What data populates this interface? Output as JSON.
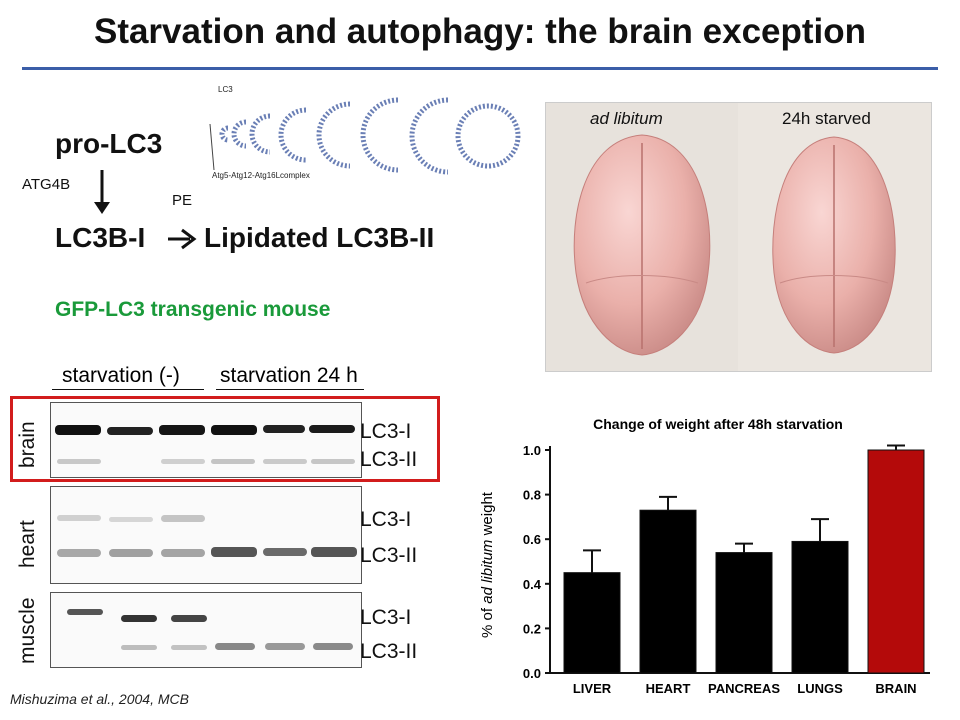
{
  "slide": {
    "title": "Starvation and autophagy: the brain exception",
    "citation": "Mishuzima et al., 2004, MCB"
  },
  "pathway": {
    "pro": "pro-LC3",
    "enzyme": "ATG4B",
    "pe": "PE",
    "lc3b1": "LC3B-I",
    "arrow": "→",
    "lipidated": "Lipidated LC3B-II",
    "diagram_lc3": "LC3",
    "diagram_complex": "Atg5-Atg12-Atg16Lcomplex"
  },
  "gfp_label": "GFP-LC3 transgenic mouse",
  "photos": {
    "left_caption": "ad libitum",
    "right_caption": "24h starved"
  },
  "blot": {
    "header_left": "starvation (-)",
    "header_right": "starvation 24 h",
    "tissues": [
      "brain",
      "heart",
      "muscle"
    ],
    "lc3_i": "LC3-I",
    "lc3_ii": "LC3-II"
  },
  "chart_data": {
    "type": "bar",
    "title": "Change of weight after 48h starvation",
    "ylabel_prefix": "% of ",
    "ylabel_italic": "ad libitum",
    "ylabel_suffix": " weight",
    "categories": [
      "LIVER",
      "HEART",
      "PANCREAS",
      "LUNGS",
      "BRAIN"
    ],
    "values": [
      0.45,
      0.73,
      0.54,
      0.59,
      1.0
    ],
    "errors": [
      0.1,
      0.06,
      0.04,
      0.1,
      0.02
    ],
    "colors": [
      "#000000",
      "#000000",
      "#000000",
      "#000000",
      "#b40a0a"
    ],
    "ylim": [
      0.0,
      1.0
    ],
    "yticks": [
      "0.0",
      "0.2",
      "0.4",
      "0.6",
      "0.8",
      "1.0"
    ]
  }
}
